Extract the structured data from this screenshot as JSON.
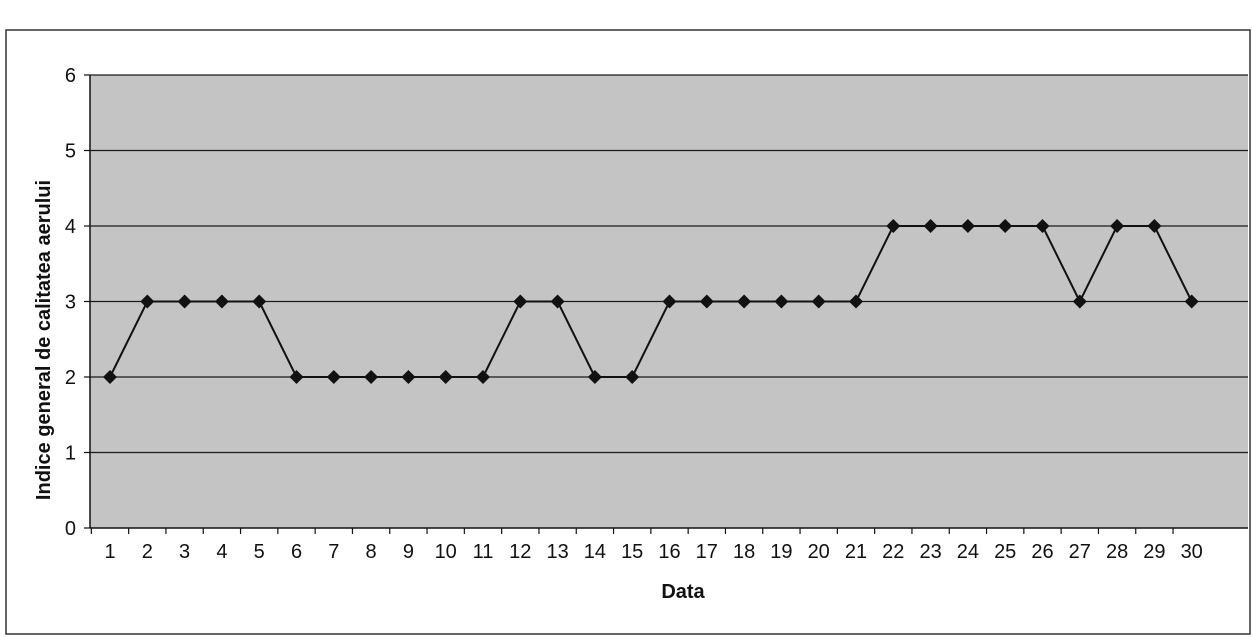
{
  "chart_data": {
    "type": "line",
    "title": "",
    "xlabel": "Data",
    "ylabel": "Indice general de calitatea aerului",
    "categories": [
      "1",
      "2",
      "3",
      "4",
      "5",
      "6",
      "7",
      "8",
      "9",
      "10",
      "11",
      "12",
      "13",
      "14",
      "15",
      "16",
      "17",
      "18",
      "19",
      "20",
      "21",
      "22",
      "23",
      "24",
      "25",
      "26",
      "27",
      "28",
      "29",
      "30"
    ],
    "series": [
      {
        "values": [
          2,
          3,
          3,
          3,
          3,
          2,
          2,
          2,
          2,
          2,
          2,
          3,
          3,
          2,
          2,
          3,
          3,
          3,
          3,
          3,
          3,
          4,
          4,
          4,
          4,
          4,
          3,
          4,
          4,
          3
        ]
      }
    ],
    "ylim": [
      0,
      6
    ],
    "yticks": [
      "0",
      "1",
      "2",
      "3",
      "4",
      "5",
      "6"
    ],
    "grid": true,
    "legend": "none",
    "colors": {
      "plot_background": "#c4c4c4",
      "gridline": "#1a1a1a",
      "series_line": "#111111",
      "marker": "#111111",
      "frame": "#333333"
    },
    "marker": "diamond"
  }
}
